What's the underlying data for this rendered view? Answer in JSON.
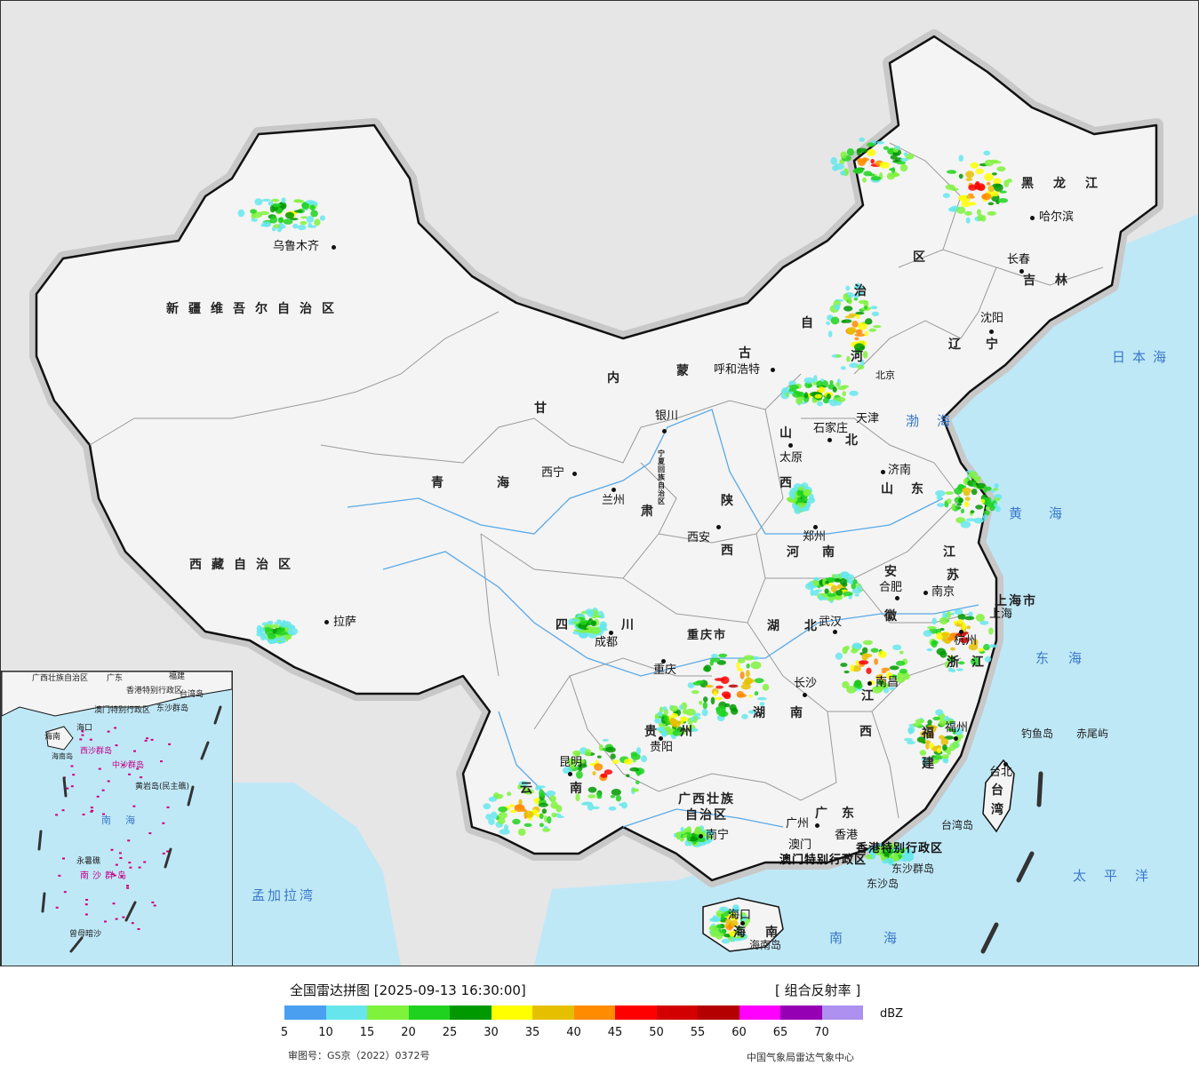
{
  "map": {
    "colors": {
      "land": "#f2f2f2",
      "outside": "#e6e6e6",
      "sea": "#bfe8f7",
      "border": "#111111",
      "province_line": "#9a9a9a",
      "river": "#5aa9e6",
      "sea_label": "#3a78c9"
    },
    "regions": [
      "新疆维吾尔自治区",
      "西藏自治区",
      "青海",
      "甘肃",
      "内蒙古",
      "宁夏回族自治区",
      "四川",
      "重庆市",
      "陕西",
      "山西",
      "河北",
      "山东",
      "河南",
      "湖北",
      "湖南",
      "江西",
      "安徽",
      "江苏",
      "浙江",
      "福建",
      "广东",
      "广西壮族自治区",
      "贵州",
      "云南",
      "海南",
      "辽宁",
      "吉林",
      "黑龙江",
      "台湾",
      "上海市",
      "天津",
      "北京"
    ],
    "province_labels": [
      {
        "id": "xinjiang",
        "text": "新疆维吾尔自治区"
      },
      {
        "id": "xizang",
        "text": "西藏自治区"
      },
      {
        "id": "qinghai-1",
        "text": "青"
      },
      {
        "id": "qinghai-2",
        "text": "海"
      },
      {
        "id": "gansu-1",
        "text": "甘"
      },
      {
        "id": "gansu-2",
        "text": "肃"
      },
      {
        "id": "neimenggu-1",
        "text": "内"
      },
      {
        "id": "neimenggu-2",
        "text": "蒙"
      },
      {
        "id": "neimenggu-3",
        "text": "古"
      },
      {
        "id": "neimenggu-4",
        "text": "自"
      },
      {
        "id": "neimenggu-5",
        "text": "治"
      },
      {
        "id": "neimenggu-6",
        "text": "区"
      },
      {
        "id": "sichuan-1",
        "text": "四"
      },
      {
        "id": "sichuan-2",
        "text": "川"
      },
      {
        "id": "chongqing",
        "text": "重庆市"
      },
      {
        "id": "shaanxi-1",
        "text": "陕"
      },
      {
        "id": "shaanxi-2",
        "text": "西"
      },
      {
        "id": "shanxi-1",
        "text": "山"
      },
      {
        "id": "shanxi-2",
        "text": "西"
      },
      {
        "id": "hebei-1",
        "text": "河"
      },
      {
        "id": "hebei-2",
        "text": "北"
      },
      {
        "id": "shandong-1",
        "text": "山"
      },
      {
        "id": "shandong-2",
        "text": "东"
      },
      {
        "id": "henan-1",
        "text": "河"
      },
      {
        "id": "henan-2",
        "text": "南"
      },
      {
        "id": "hubei-1",
        "text": "湖"
      },
      {
        "id": "hubei-2",
        "text": "北"
      },
      {
        "id": "hunan-1",
        "text": "湖"
      },
      {
        "id": "hunan-2",
        "text": "南"
      },
      {
        "id": "jiangxi-1",
        "text": "江"
      },
      {
        "id": "jiangxi-2",
        "text": "西"
      },
      {
        "id": "anhui-1",
        "text": "安"
      },
      {
        "id": "anhui-2",
        "text": "徽"
      },
      {
        "id": "jiangsu-1",
        "text": "江"
      },
      {
        "id": "jiangsu-2",
        "text": "苏"
      },
      {
        "id": "zhejiang-1",
        "text": "浙"
      },
      {
        "id": "zhejiang-2",
        "text": "江"
      },
      {
        "id": "fujian-1",
        "text": "福"
      },
      {
        "id": "fujian-2",
        "text": "建"
      },
      {
        "id": "guangdong",
        "text": "广东"
      },
      {
        "id": "guangxi-1",
        "text": "广西壮族"
      },
      {
        "id": "guangxi-2",
        "text": "自治区"
      },
      {
        "id": "guizhou-1",
        "text": "贵"
      },
      {
        "id": "guizhou-2",
        "text": "州"
      },
      {
        "id": "yunnan-1",
        "text": "云"
      },
      {
        "id": "yunnan-2",
        "text": "南"
      },
      {
        "id": "hainan-1",
        "text": "海"
      },
      {
        "id": "hainan-2",
        "text": "南"
      },
      {
        "id": "liaoning",
        "text": "辽宁"
      },
      {
        "id": "jilin",
        "text": "吉林"
      },
      {
        "id": "heilongjiang",
        "text": "黑龙江"
      },
      {
        "id": "taiwan-1",
        "text": "台"
      },
      {
        "id": "taiwan-2",
        "text": "湾"
      },
      {
        "id": "shanghai",
        "text": "上海市"
      },
      {
        "id": "ningxia",
        "text": "宁夏回族自治区"
      },
      {
        "id": "beijing",
        "text": "北京"
      },
      {
        "id": "tianjin",
        "text": "天津"
      }
    ],
    "cities": [
      {
        "id": "urumqi",
        "text": "乌鲁木齐"
      },
      {
        "id": "lhasa",
        "text": "拉萨"
      },
      {
        "id": "xining",
        "text": "西宁"
      },
      {
        "id": "lanzhou",
        "text": "兰州"
      },
      {
        "id": "yinchuan",
        "text": "银川"
      },
      {
        "id": "hohhot",
        "text": "呼和浩特"
      },
      {
        "id": "chengdu",
        "text": "成都"
      },
      {
        "id": "chongqing-city",
        "text": "重庆"
      },
      {
        "id": "xian",
        "text": "西安"
      },
      {
        "id": "taiyuan",
        "text": "太原"
      },
      {
        "id": "shijiazhuang",
        "text": "石家庄"
      },
      {
        "id": "jinan",
        "text": "济南"
      },
      {
        "id": "zhengzhou",
        "text": "郑州"
      },
      {
        "id": "wuhan",
        "text": "武汉"
      },
      {
        "id": "changsha",
        "text": "长沙"
      },
      {
        "id": "nanchang",
        "text": "南昌"
      },
      {
        "id": "hefei",
        "text": "合肥"
      },
      {
        "id": "nanjing",
        "text": "南京"
      },
      {
        "id": "hangzhou",
        "text": "杭州"
      },
      {
        "id": "fuzhou",
        "text": "福州"
      },
      {
        "id": "guangzhou",
        "text": "广州"
      },
      {
        "id": "nanning",
        "text": "南宁"
      },
      {
        "id": "guiyang",
        "text": "贵阳"
      },
      {
        "id": "kunming",
        "text": "昆明"
      },
      {
        "id": "haikou",
        "text": "海口"
      },
      {
        "id": "shenyang",
        "text": "沈阳"
      },
      {
        "id": "changchun",
        "text": "长春"
      },
      {
        "id": "harbin",
        "text": "哈尔滨"
      },
      {
        "id": "taibei",
        "text": "台北"
      },
      {
        "id": "macao",
        "text": "澳门"
      },
      {
        "id": "hongkong",
        "text": "香港"
      },
      {
        "id": "shanghai-city",
        "text": "上海"
      }
    ],
    "special_labels": [
      {
        "id": "hk-sar",
        "text": "香港特别行政区"
      },
      {
        "id": "macao-sar",
        "text": "澳门特别行政区"
      }
    ],
    "seas": [
      {
        "id": "japan-sea",
        "text": "日本海"
      },
      {
        "id": "bohai",
        "text": "渤海"
      },
      {
        "id": "huanghai",
        "text": "黄海"
      },
      {
        "id": "donghai",
        "text": "东海"
      },
      {
        "id": "taipingyang",
        "text": "太平洋"
      },
      {
        "id": "nanhai",
        "text": "南海"
      },
      {
        "id": "mengjiala",
        "text": "孟加拉湾"
      }
    ],
    "islands": [
      {
        "id": "diaoyu",
        "text": "钓鱼岛"
      },
      {
        "id": "chiwei",
        "text": "赤尾屿"
      },
      {
        "id": "dongsha-qundao",
        "text": "东沙群岛"
      },
      {
        "id": "dongsha-dao",
        "text": "东沙岛"
      },
      {
        "id": "taiwan-dao",
        "text": "台湾岛"
      },
      {
        "id": "hainan-dao",
        "text": "海南岛"
      }
    ],
    "inset": {
      "labels": [
        "广西壮族自治区",
        "广东",
        "福建",
        "台湾岛",
        "海南",
        "海口",
        "香港特别行政区",
        "澳门特别行政区",
        "东沙群岛",
        "西沙群岛",
        "中沙群岛",
        "黄岩岛(民主礁)",
        "南海",
        "永暑礁",
        "南沙群岛",
        "曾母暗沙",
        "海南岛"
      ]
    }
  },
  "legend": {
    "title": "全国雷达拼图 [2025-09-13 16:30:00]",
    "product": "[ 组合反射率 ]",
    "unit": "dBZ",
    "colors": [
      "#4a9ff0",
      "#66e6ec",
      "#7ff23c",
      "#1fd21f",
      "#009900",
      "#ffff00",
      "#e6c000",
      "#ff8c00",
      "#ff0000",
      "#d20000",
      "#b40000",
      "#ff00ff",
      "#9600b4",
      "#ad90f0"
    ],
    "ticks": [
      "5",
      "10",
      "15",
      "20",
      "25",
      "30",
      "35",
      "40",
      "45",
      "50",
      "55",
      "60",
      "65",
      "70"
    ],
    "review_number": "审图号：GS京（2022）0372号",
    "source": "中国气象局雷达气象中心"
  }
}
